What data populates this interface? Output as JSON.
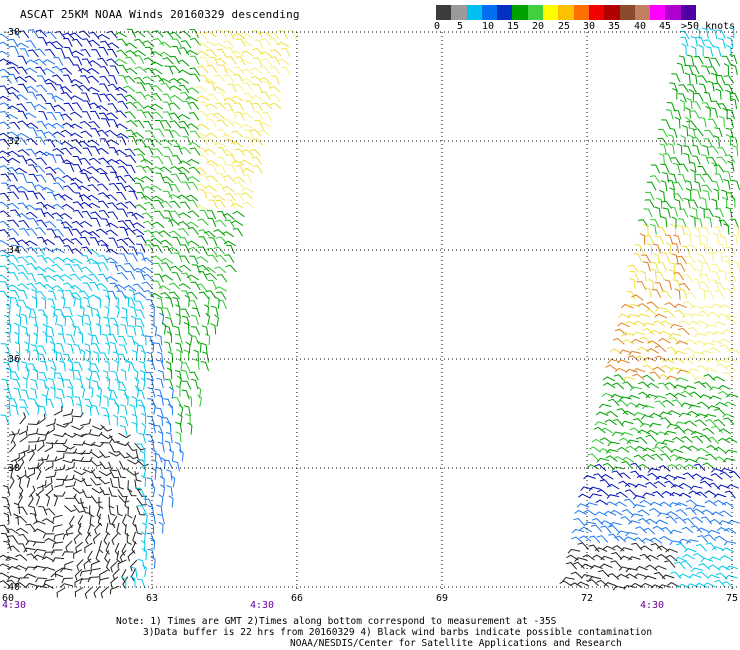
{
  "title": "ASCAT 25KM NOAA Winds 20160329 descending",
  "colorbar": {
    "colors": [
      "#3c3c3c",
      "#9a9a9a",
      "#00bff2",
      "#0070f0",
      "#0030c0",
      "#00a000",
      "#40d040",
      "#ffff00",
      "#ffc000",
      "#ff7000",
      "#f00000",
      "#b00000",
      "#8b4a2e",
      "#c08060",
      "#ff00ff",
      "#b000d0",
      "#5000a0"
    ],
    "labels": [
      "0",
      "5",
      "10",
      "15",
      "20",
      "25",
      "30",
      "35",
      "40",
      "45",
      ">50 knots"
    ]
  },
  "map": {
    "lat_labels": [
      "-30",
      "-32",
      "-34",
      "-36",
      "-38",
      "-40"
    ],
    "lon_labels": [
      "60",
      "63",
      "66",
      "69",
      "72",
      "75"
    ],
    "time_labels": [
      "4:30",
      "4:30",
      "4:30"
    ]
  },
  "notes": {
    "line1": "Note: 1) Times are GMT 2)Times along bottom correspond to measurement at -35S",
    "line2": "3)Data buffer is 22 hrs from 20160329 4) Black wind barbs indicate possible contamination",
    "line3": "NOAA/NESDIS/Center for Satellite Applications and Research"
  }
}
